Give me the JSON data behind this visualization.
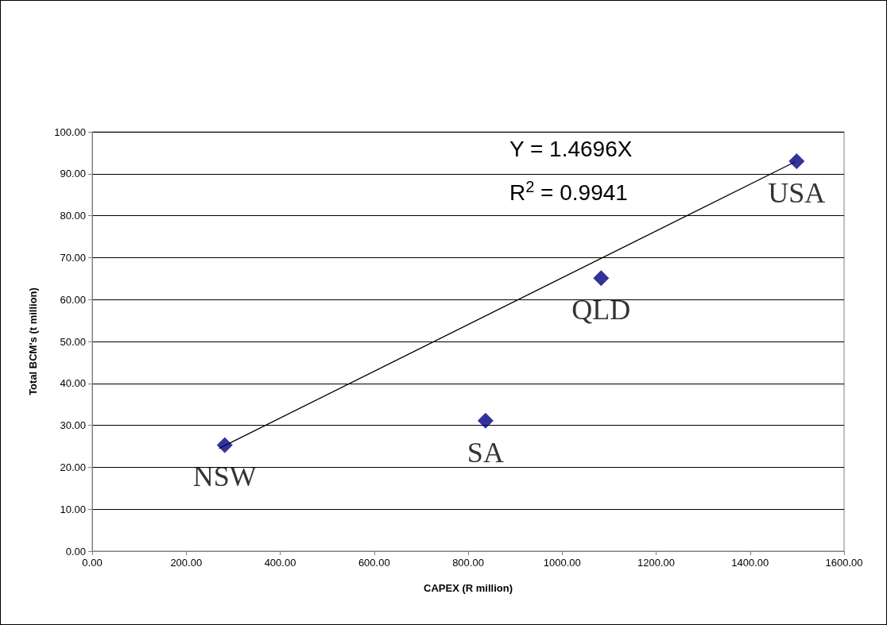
{
  "chart_data": {
    "type": "scatter",
    "xlabel": "CAPEX (R million)",
    "ylabel": "Total BCM's (t million)",
    "series": [
      {
        "name": "NSW",
        "color": "#000080",
        "x": [
          282
        ],
        "values": [
          25.3
        ]
      },
      {
        "name": "SA",
        "color": "#000080",
        "x": [
          837
        ],
        "values": [
          31.1
        ]
      },
      {
        "name": "QLD",
        "color": "#000080",
        "x": [
          1083
        ],
        "values": [
          65.1
        ]
      },
      {
        "name": "USA",
        "color": "#000080",
        "x": [
          1499
        ],
        "values": [
          93.0
        ]
      },
      {
        "type": "line",
        "color": "#000000",
        "x": [
          270,
          1495
        ],
        "values": [
          24.5,
          92.8
        ],
        "marker": "none"
      }
    ],
    "annotations": [
      "Y = 1.4696X",
      "R$^{2}$ = 0.9941"
    ],
    "xlim": [
      0,
      1600
    ],
    "xticks": [
      {
        "value": 0,
        "label": "0.00"
      },
      {
        "value": 200,
        "label": "200.00"
      },
      {
        "value": 400,
        "label": "400.00"
      },
      {
        "value": 600,
        "label": "600.00"
      },
      {
        "value": 800,
        "label": "800.00"
      },
      {
        "value": 1000,
        "label": "1000.00"
      },
      {
        "value": 1200,
        "label": "1200.00"
      },
      {
        "value": 1400,
        "label": "1400.00"
      },
      {
        "value": 1600,
        "label": "1600.00"
      }
    ],
    "ylim": [
      0,
      100
    ],
    "yticks": [
      {
        "value": 0,
        "label": "0.00"
      },
      {
        "value": 10,
        "label": "10.00"
      },
      {
        "value": 20,
        "label": "20.00"
      },
      {
        "value": 30,
        "label": "30.00"
      },
      {
        "value": 40,
        "label": "40.00"
      },
      {
        "value": 50,
        "label": "50.00"
      },
      {
        "value": 60,
        "label": "60.00"
      },
      {
        "value": 70,
        "label": "70.00"
      },
      {
        "value": 80,
        "label": "80.00"
      },
      {
        "value": 90,
        "label": "90.00"
      },
      {
        "value": 100,
        "label": "100.00"
      }
    ],
    "grid": "y",
    "legend": false,
    "marker": "diamond"
  }
}
